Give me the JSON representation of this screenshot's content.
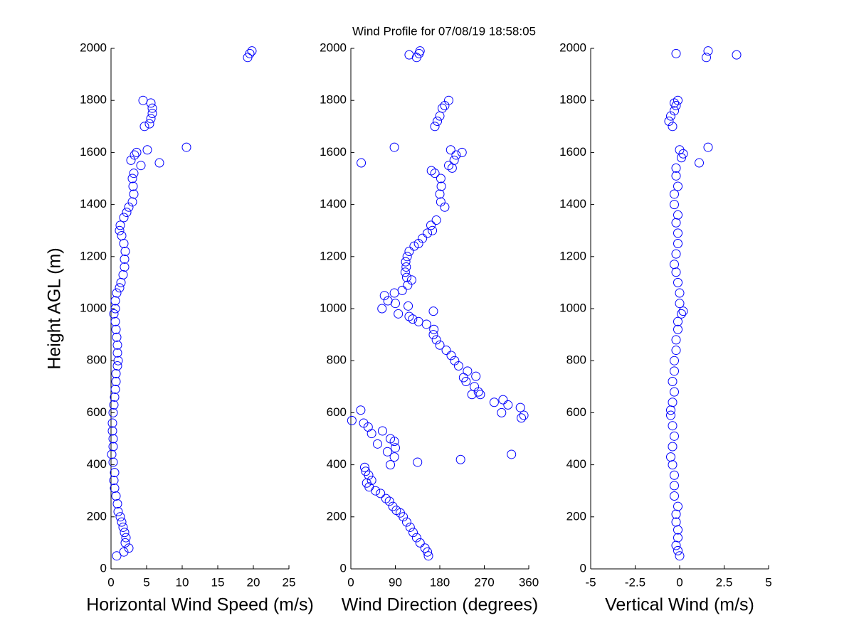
{
  "title": "Wind Profile for  07/08/19 18:58:05",
  "chart_data": [
    {
      "type": "scatter",
      "xlabel": "Horizontal Wind Speed (m/s)",
      "ylabel": "Height AGL (m)",
      "color": "#0000ff",
      "xlim": [
        0,
        25
      ],
      "xticks": [
        0,
        5,
        10,
        15,
        20,
        25
      ],
      "ylim": [
        0,
        2000
      ],
      "yticks": [
        0,
        200,
        400,
        600,
        800,
        1000,
        1200,
        1400,
        1600,
        1800,
        2000
      ],
      "x": [
        0.8,
        1.8,
        2.5,
        2.0,
        2.1,
        1.9,
        1.7,
        1.5,
        1.3,
        1.0,
        0.9,
        0.7,
        0.5,
        0.4,
        0.5,
        0.3,
        0.1,
        0.3,
        0.3,
        0.2,
        0.2,
        0.3,
        0.4,
        0.5,
        0.6,
        0.7,
        0.7,
        0.9,
        1.0,
        0.9,
        0.9,
        0.8,
        0.7,
        0.6,
        0.4,
        0.6,
        0.6,
        0.8,
        1.2,
        1.4,
        1.7,
        1.9,
        1.9,
        2.0,
        1.8,
        1.5,
        1.2,
        1.3,
        1.8,
        2.2,
        2.5,
        3.0,
        3.2,
        3.1,
        3.0,
        3.2,
        4.2,
        6.8,
        2.8,
        3.3,
        3.6,
        5.1,
        10.6,
        4.7,
        5.4,
        5.6,
        5.8,
        5.8,
        5.6,
        4.5,
        19.2,
        19.5,
        19.8
      ],
      "values": [
        50,
        65,
        80,
        100,
        120,
        140,
        160,
        180,
        200,
        220,
        250,
        280,
        310,
        340,
        370,
        410,
        440,
        470,
        500,
        530,
        560,
        600,
        630,
        660,
        690,
        720,
        750,
        780,
        800,
        830,
        860,
        890,
        920,
        950,
        980,
        1000,
        1030,
        1060,
        1080,
        1100,
        1130,
        1160,
        1190,
        1220,
        1250,
        1280,
        1300,
        1320,
        1350,
        1370,
        1390,
        1410,
        1440,
        1470,
        1500,
        1520,
        1550,
        1560,
        1570,
        1590,
        1600,
        1610,
        1620,
        1700,
        1710,
        1730,
        1750,
        1770,
        1790,
        1800,
        1965,
        1980,
        1990
      ]
    },
    {
      "type": "scatter",
      "xlabel": "Wind Direction (degrees)",
      "color": "#0000ff",
      "xlim": [
        0,
        360
      ],
      "xticks": [
        0,
        90,
        180,
        270,
        360
      ],
      "ylim": [
        0,
        2000
      ],
      "yticks": [
        0,
        200,
        400,
        600,
        800,
        1000,
        1200,
        1400,
        1600,
        1800,
        2000
      ],
      "x": [
        157,
        155,
        150,
        140,
        133,
        126,
        120,
        113,
        106,
        100,
        92,
        85,
        78,
        71,
        60,
        50,
        37,
        32,
        42,
        36,
        30,
        28,
        135,
        222,
        325,
        80,
        88,
        74,
        90,
        88,
        80,
        54,
        42,
        64,
        35,
        26,
        2,
        20,
        345,
        350,
        305,
        343,
        318,
        308,
        290,
        262,
        258,
        245,
        250,
        233,
        228,
        253,
        236,
        218,
        210,
        203,
        193,
        180,
        173,
        167,
        168,
        153,
        137,
        125,
        118,
        96,
        167,
        63,
        116,
        90,
        75,
        68,
        88,
        104,
        115,
        123,
        113,
        110,
        112,
        111,
        114,
        118,
        128,
        137,
        145,
        155,
        165,
        162,
        173,
        190,
        182,
        180,
        183,
        182,
        170,
        163,
        205,
        198,
        209,
        213,
        225,
        202,
        21,
        88,
        170,
        175,
        180,
        185,
        190,
        198,
        118,
        133,
        138,
        140
      ],
      "values": [
        50,
        65,
        80,
        100,
        120,
        140,
        160,
        180,
        200,
        215,
        225,
        240,
        260,
        270,
        290,
        300,
        315,
        330,
        340,
        360,
        375,
        390,
        410,
        420,
        440,
        400,
        430,
        450,
        465,
        490,
        500,
        480,
        520,
        530,
        545,
        560,
        570,
        610,
        580,
        590,
        600,
        620,
        630,
        650,
        640,
        670,
        680,
        670,
        700,
        720,
        735,
        740,
        760,
        780,
        800,
        820,
        840,
        860,
        880,
        900,
        920,
        940,
        950,
        960,
        970,
        980,
        990,
        1000,
        1010,
        1020,
        1030,
        1050,
        1060,
        1070,
        1090,
        1110,
        1120,
        1140,
        1160,
        1180,
        1200,
        1220,
        1240,
        1250,
        1270,
        1290,
        1300,
        1320,
        1340,
        1390,
        1410,
        1440,
        1470,
        1500,
        1520,
        1530,
        1540,
        1550,
        1570,
        1590,
        1600,
        1610,
        1560,
        1620,
        1700,
        1720,
        1740,
        1770,
        1780,
        1800,
        1975,
        1965,
        1980,
        1990
      ]
    },
    {
      "type": "scatter",
      "xlabel": "Vertical Wind (m/s)",
      "color": "#0000ff",
      "xlim": [
        -5,
        5
      ],
      "xticks": [
        -5,
        -2.5,
        0,
        2.5,
        5
      ],
      "ylim": [
        0,
        2000
      ],
      "yticks": [
        0,
        200,
        400,
        600,
        800,
        1000,
        1200,
        1400,
        1600,
        1800,
        2000
      ],
      "x": [
        0,
        -0.1,
        -0.2,
        -0.1,
        -0.1,
        -0.2,
        -0.2,
        -0.1,
        -0.3,
        -0.3,
        -0.3,
        -0.4,
        -0.5,
        -0.4,
        -0.3,
        -0.4,
        -0.5,
        -0.5,
        -0.4,
        -0.3,
        -0.4,
        -0.3,
        -0.3,
        -0.2,
        -0.2,
        -0.1,
        -0.1,
        0.1,
        0.2,
        0,
        0,
        -0.1,
        -0.2,
        -0.3,
        -0.2,
        -0.1,
        -0.1,
        -0.2,
        -0.1,
        -0.3,
        -0.3,
        -0.1,
        -0.2,
        -0.2,
        1.1,
        1.6,
        0.1,
        0.2,
        0,
        -0.6,
        -0.4,
        -0.5,
        -0.3,
        -0.2,
        -0.1,
        -0.3,
        -0.2,
        1.5,
        1.6,
        3.2
      ],
      "values": [
        50,
        70,
        90,
        120,
        150,
        180,
        210,
        240,
        280,
        320,
        360,
        400,
        430,
        470,
        510,
        550,
        590,
        610,
        640,
        680,
        720,
        760,
        800,
        840,
        880,
        920,
        950,
        980,
        990,
        1020,
        1060,
        1100,
        1140,
        1170,
        1210,
        1250,
        1290,
        1330,
        1360,
        1400,
        1440,
        1470,
        1510,
        1540,
        1560,
        1620,
        1580,
        1595,
        1610,
        1720,
        1700,
        1740,
        1760,
        1780,
        1800,
        1790,
        1980,
        1965,
        1990,
        1975
      ]
    }
  ]
}
